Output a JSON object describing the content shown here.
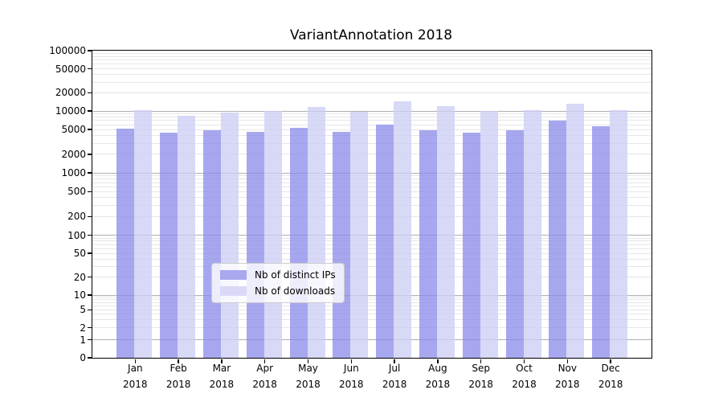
{
  "chart_data": {
    "type": "bar",
    "title": "VariantAnnotation 2018",
    "categories": [
      "Jan",
      "Feb",
      "Mar",
      "Apr",
      "May",
      "Jun",
      "Jul",
      "Aug",
      "Sep",
      "Oct",
      "Nov",
      "Dec"
    ],
    "category_year": "2018",
    "series": [
      {
        "name": "Nb of distinct IPs",
        "color": "rgba(138,138,235,0.75)",
        "legend_color": "#a8a8ef",
        "values": [
          5200,
          4450,
          4850,
          4650,
          5400,
          4650,
          6000,
          4900,
          4400,
          4950,
          6900,
          5600
        ]
      },
      {
        "name": "Nb of downloads",
        "color": "rgba(205,205,245,0.78)",
        "legend_color": "#d9d9f7",
        "values": [
          10400,
          8300,
          9400,
          10100,
          11600,
          9600,
          14500,
          12000,
          10000,
          10300,
          13200,
          10300
        ]
      }
    ],
    "xlabel": "",
    "ylabel": "",
    "y_axis": {
      "scale": "symlog",
      "ylim": [
        0,
        100000
      ],
      "ticks": [
        0,
        1,
        2,
        5,
        10,
        20,
        50,
        100,
        200,
        500,
        1000,
        2000,
        5000,
        10000,
        20000,
        50000,
        100000
      ]
    },
    "grid": true,
    "legend_position": "lower center",
    "colors": {
      "major_grid": "#b0b0b0",
      "minor_grid": "#e6e6e6",
      "axis": "#000000",
      "background": "#ffffff"
    }
  }
}
